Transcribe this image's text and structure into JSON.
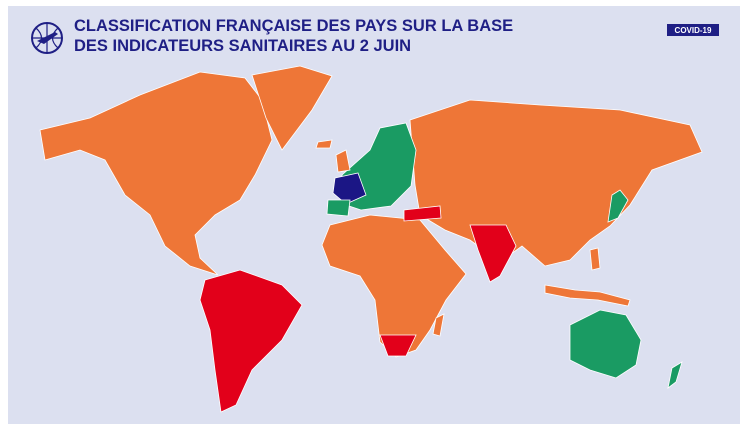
{
  "header": {
    "title_lines": [
      "CLASSIFICATION FRANÇAISE DES PAYS SUR LA BASE",
      "DES INDICATEURS SANITAIRES AU 2 JUIN"
    ],
    "badge": "COVID-19"
  }
}
